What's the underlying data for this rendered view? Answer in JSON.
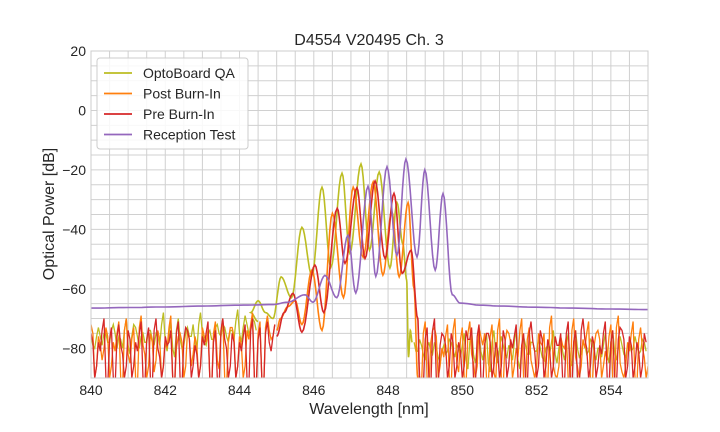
{
  "chart_data": {
    "type": "line",
    "title": "D4554 V20495 Ch. 3",
    "xlabel": "Wavelength [nm]",
    "ylabel": "Optical Power [dB]",
    "xlim": [
      840,
      855
    ],
    "ylim": [
      -90,
      20
    ],
    "xticks": [
      840,
      842,
      844,
      846,
      848,
      850,
      852,
      854
    ],
    "yticks": [
      20,
      0,
      -20,
      -40,
      -60,
      -80
    ],
    "ytick_labels": [
      "20",
      "0",
      "−20",
      "−40",
      "−60",
      "−80"
    ],
    "grid": true,
    "minor_grid": {
      "x_step": 0.5,
      "y_step": 5
    },
    "legend_position": "top-left",
    "series": [
      {
        "name": "OptoBoard QA",
        "color": "#bcbd22",
        "noise": [
          {
            "x_start": 840,
            "x_step": 0.1,
            "y": [
              -76,
              -80,
              -73,
              -79,
              -75,
              -78,
              -72,
              -80,
              -77,
              -74,
              -79,
              -76,
              -73,
              -80,
              -75,
              -78,
              -74,
              -79,
              -76,
              -72,
              -78,
              -75,
              -80,
              -74,
              -77,
              -79,
              -73,
              -76,
              -78,
              -72,
              -75,
              -79,
              -74,
              -77,
              -72,
              -76,
              -73,
              -78,
              -74,
              -71,
              -75,
              -73,
              -72,
              -74,
              -71
            ]
          },
          {
            "x_start": 848.7,
            "x_step": 0.1,
            "y": [
              -78,
              -81,
              -79,
              -84,
              -78,
              -82,
              -80,
              -85,
              -79,
              -81,
              -78,
              -83,
              -80,
              -79,
              -84,
              -78,
              -82,
              -80,
              -81,
              -79,
              -85,
              -78,
              -82,
              -80,
              -79,
              -83,
              -81,
              -78,
              -84,
              -80,
              -79,
              -82,
              -78,
              -81,
              -80,
              -84,
              -79,
              -78,
              -82,
              -80,
              -81,
              -79,
              -83,
              -78,
              -80,
              -82,
              -79,
              -81,
              -78,
              -84,
              -80,
              -79,
              -82,
              -78,
              -81,
              -80,
              -79,
              -83,
              -78,
              -80,
              -79,
              -81,
              -78
            ]
          }
        ],
        "x": [
          844.5,
          844.3,
          844.5,
          844.7,
          844.9,
          845.12,
          845.4,
          845.68,
          845.95,
          846.22,
          846.46,
          846.76,
          846.97,
          847.27,
          847.5,
          847.76,
          848.05,
          848.24,
          848.4,
          848.5,
          848.55,
          848.6,
          848.65
        ],
        "y": [
          -71,
          -68,
          -64,
          -68,
          -70,
          -56,
          -63,
          -39.3,
          -55.5,
          -25.8,
          -52.7,
          -21.1,
          -48,
          -18,
          -47,
          -20.7,
          -53,
          -31,
          -45,
          -57,
          -83,
          -74,
          -78
        ]
      },
      {
        "name": "Post Burn-In",
        "color": "#ff7f0e",
        "noise": [
          {
            "x_start": 840,
            "x_step": 0.1,
            "y": [
              -72,
              -90,
              -76,
              -84,
              -73,
              -90,
              -78,
              -75,
              -90,
              -74,
              -82,
              -77,
              -90,
              -73,
              -79,
              -90,
              -75,
              -88,
              -74,
              -90,
              -77,
              -73,
              -90,
              -80,
              -75,
              -90,
              -74,
              -86,
              -76,
              -90,
              -73,
              -78,
              -90,
              -75,
              -84,
              -74,
              -90,
              -77,
              -73,
              -90,
              -76,
              -90,
              -74,
              -72,
              -90,
              -75,
              -90,
              -73,
              -74,
              -76
            ]
          },
          {
            "x_start": 848.85,
            "x_step": 0.1,
            "y": [
              -90,
              -75,
              -90,
              -78,
              -73,
              -90,
              -80,
              -76,
              -90,
              -74,
              -85,
              -77,
              -90,
              -75,
              -82,
              -90,
              -73,
              -79,
              -90,
              -76,
              -88,
              -74,
              -90,
              -78,
              -75,
              -90,
              -80,
              -74,
              -90,
              -77,
              -84,
              -90,
              -75,
              -79,
              -90,
              -73,
              -86,
              -90,
              -76,
              -80,
              -90,
              -74,
              -83,
              -90,
              -77,
              -75,
              -90,
              -79,
              -74,
              -90,
              -81,
              -76,
              -90,
              -73,
              -85,
              -90,
              -78,
              -75,
              -90,
              -77,
              -80,
              -90
            ]
          }
        ],
        "x": [
          845.0,
          845.1,
          845.3,
          845.5,
          845.68,
          845.95,
          846.22,
          846.5,
          846.8,
          847.06,
          847.33,
          847.6,
          847.86,
          848.1,
          848.3,
          848.54,
          848.7,
          848.8
        ],
        "y": [
          -74,
          -70,
          -66,
          -64,
          -72,
          -53.7,
          -74,
          -34.6,
          -63,
          -25.8,
          -49.4,
          -24,
          -55.4,
          -34,
          -56,
          -31,
          -60,
          -90
        ]
      },
      {
        "name": "Pre Burn-In",
        "color": "#d62728",
        "noise": [
          {
            "x_start": 840,
            "x_step": 0.1,
            "y": [
              -75,
              -90,
              -78,
              -74,
              -90,
              -77,
              -90,
              -76,
              -79,
              -90,
              -74,
              -90,
              -78,
              -75,
              -90,
              -77,
              -90,
              -74,
              -80,
              -90,
              -76,
              -78,
              -90,
              -75,
              -90,
              -77,
              -74,
              -90,
              -79,
              -90,
              -76,
              -75,
              -90,
              -78,
              -90,
              -74,
              -77,
              -90,
              -75,
              -90,
              -78,
              -76,
              -90,
              -74,
              -90,
              -77,
              -90,
              -75,
              -78,
              -76
            ]
          },
          {
            "x_start": 848.9,
            "x_step": 0.1,
            "y": [
              -90,
              -77,
              -90,
              -74,
              -90,
              -79,
              -76,
              -90,
              -75,
              -90,
              -78,
              -90,
              -74,
              -77,
              -90,
              -76,
              -90,
              -79,
              -75,
              -90,
              -78,
              -90,
              -74,
              -90,
              -77,
              -76,
              -90,
              -79,
              -90,
              -75,
              -78,
              -90,
              -74,
              -90,
              -77,
              -90,
              -76,
              -79,
              -90,
              -75,
              -90,
              -78,
              -90,
              -74,
              -77,
              -90,
              -76,
              -90,
              -79,
              -75,
              -90,
              -78,
              -90,
              -77,
              -74,
              -90,
              -76,
              -90,
              -78,
              -90,
              -75
            ]
          }
        ],
        "x": [
          845.0,
          845.2,
          845.44,
          845.68,
          846.03,
          846.27,
          846.63,
          846.84,
          847.16,
          847.38,
          847.65,
          847.92,
          848.16,
          848.38,
          848.62,
          848.8,
          848.85
        ],
        "y": [
          -76,
          -68,
          -61.5,
          -74.6,
          -52,
          -68,
          -32.9,
          -51.4,
          -26,
          -49.8,
          -23.7,
          -49.8,
          -27.9,
          -54.8,
          -47,
          -70,
          -90
        ]
      },
      {
        "name": "Reception Test",
        "color": "#9467bd",
        "x": [
          840,
          841,
          842,
          843,
          844,
          844.9,
          845.3,
          845.76,
          845.98,
          846.3,
          846.62,
          846.92,
          847.13,
          847.46,
          847.67,
          847.97,
          848.24,
          848.48,
          848.78,
          848.99,
          849.27,
          849.48,
          849.73,
          849.94,
          850.5,
          851,
          852,
          853,
          854,
          855
        ],
        "y": [
          -66.5,
          -66.3,
          -66.1,
          -65.8,
          -65.5,
          -65.3,
          -64.5,
          -62,
          -64.5,
          -55.5,
          -63,
          -42,
          -61.4,
          -25.5,
          -55.8,
          -19,
          -48.7,
          -16.4,
          -49.3,
          -20,
          -53.7,
          -28,
          -62,
          -64.8,
          -65.5,
          -65.8,
          -66.2,
          -66.5,
          -66.8,
          -67
        ]
      }
    ]
  }
}
